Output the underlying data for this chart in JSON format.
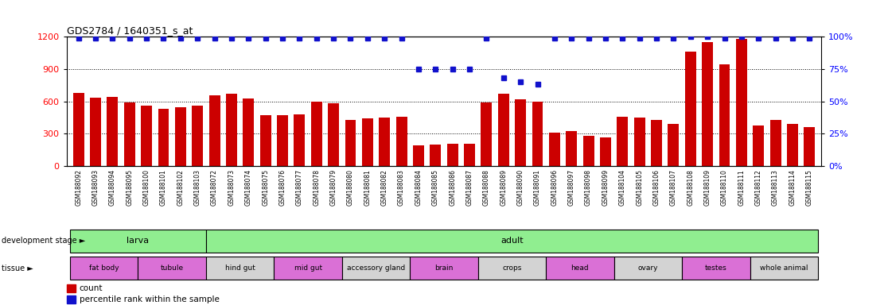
{
  "title": "GDS2784 / 1640351_s_at",
  "samples": [
    "GSM188092",
    "GSM188093",
    "GSM188094",
    "GSM188095",
    "GSM188100",
    "GSM188101",
    "GSM188102",
    "GSM188103",
    "GSM188072",
    "GSM188073",
    "GSM188074",
    "GSM188075",
    "GSM188076",
    "GSM188077",
    "GSM188078",
    "GSM188079",
    "GSM188080",
    "GSM188081",
    "GSM188082",
    "GSM188083",
    "GSM188084",
    "GSM188085",
    "GSM188086",
    "GSM188087",
    "GSM188088",
    "GSM188089",
    "GSM188090",
    "GSM188091",
    "GSM188096",
    "GSM188097",
    "GSM188098",
    "GSM188099",
    "GSM188104",
    "GSM188105",
    "GSM188106",
    "GSM188107",
    "GSM188108",
    "GSM188109",
    "GSM188110",
    "GSM188111",
    "GSM188112",
    "GSM188113",
    "GSM188114",
    "GSM188115"
  ],
  "counts": [
    680,
    635,
    640,
    590,
    560,
    530,
    545,
    560,
    660,
    670,
    625,
    475,
    470,
    480,
    600,
    580,
    430,
    440,
    450,
    460,
    195,
    200,
    205,
    210,
    590,
    670,
    620,
    600,
    310,
    325,
    285,
    270,
    460,
    450,
    430,
    390,
    1060,
    1150,
    940,
    1180,
    380,
    430,
    390,
    360
  ],
  "percentile_ranks": [
    99,
    99,
    99,
    99,
    99,
    99,
    99,
    99,
    99,
    99,
    99,
    99,
    99,
    99,
    99,
    99,
    99,
    99,
    99,
    99,
    75,
    75,
    75,
    75,
    99,
    68,
    65,
    63,
    99,
    99,
    99,
    99,
    99,
    99,
    99,
    99,
    100,
    100,
    99,
    100,
    99,
    99,
    99,
    99
  ],
  "dev_stage_groups": [
    {
      "label": "larva",
      "start": 0,
      "end": 7,
      "color": "#90ee90"
    },
    {
      "label": "adult",
      "start": 8,
      "end": 43,
      "color": "#90ee90"
    }
  ],
  "tissue_groups": [
    {
      "label": "fat body",
      "start": 0,
      "end": 3,
      "color": "#da70d6"
    },
    {
      "label": "tubule",
      "start": 4,
      "end": 7,
      "color": "#da70d6"
    },
    {
      "label": "hind gut",
      "start": 8,
      "end": 11,
      "color": "#d3d3d3"
    },
    {
      "label": "mid gut",
      "start": 12,
      "end": 15,
      "color": "#da70d6"
    },
    {
      "label": "accessory gland",
      "start": 16,
      "end": 19,
      "color": "#d3d3d3"
    },
    {
      "label": "brain",
      "start": 20,
      "end": 23,
      "color": "#da70d6"
    },
    {
      "label": "crops",
      "start": 24,
      "end": 27,
      "color": "#d3d3d3"
    },
    {
      "label": "head",
      "start": 28,
      "end": 31,
      "color": "#da70d6"
    },
    {
      "label": "ovary",
      "start": 32,
      "end": 35,
      "color": "#d3d3d3"
    },
    {
      "label": "testes",
      "start": 36,
      "end": 39,
      "color": "#da70d6"
    },
    {
      "label": "whole animal",
      "start": 40,
      "end": 43,
      "color": "#d3d3d3"
    }
  ],
  "bar_color": "#cc0000",
  "dot_color": "#1111cc",
  "ylim_left": [
    0,
    1200
  ],
  "ylim_right": [
    0,
    100
  ],
  "yticks_left": [
    0,
    300,
    600,
    900,
    1200
  ],
  "yticks_right": [
    0,
    25,
    50,
    75,
    100
  ],
  "bg_color": "#ffffff",
  "tick_label_bg": "#d8d8d8"
}
